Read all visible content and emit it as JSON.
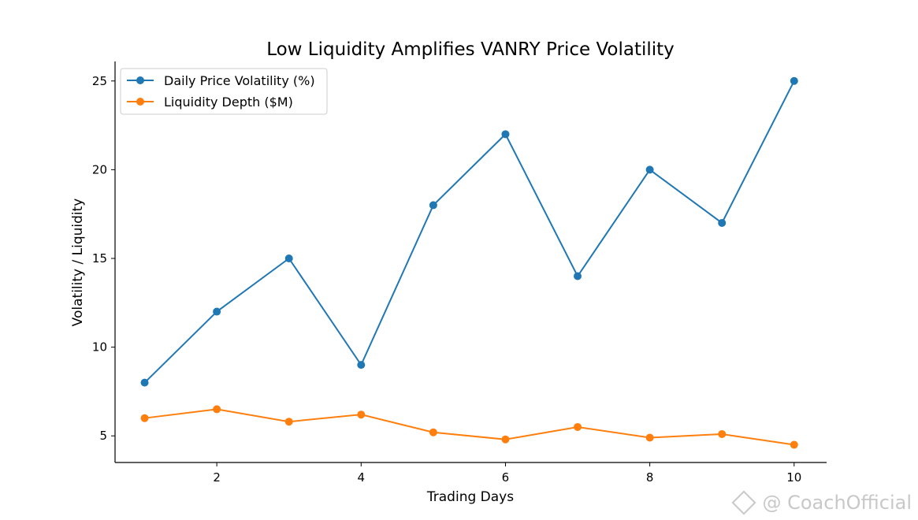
{
  "chart_data": {
    "type": "line",
    "title": "Low Liquidity Amplifies VANRY Price Volatility",
    "xlabel": "Trading Days",
    "ylabel": "Volatility / Liquidity",
    "x": [
      1,
      2,
      3,
      4,
      5,
      6,
      7,
      8,
      9,
      10
    ],
    "xticks": [
      2,
      4,
      6,
      8,
      10
    ],
    "yticks": [
      5,
      10,
      15,
      20,
      25
    ],
    "xlim": [
      0.59,
      10.45
    ],
    "ylim": [
      3.5,
      26.1
    ],
    "grid": false,
    "legend_position": "upper-left",
    "series": [
      {
        "name": "Daily Price Volatility (%)",
        "color": "#1f77b4",
        "values": [
          8,
          12,
          15,
          9,
          18,
          22,
          14,
          20,
          17,
          25
        ]
      },
      {
        "name": "Liquidity Depth ($M)",
        "color": "#ff7f0e",
        "values": [
          6.0,
          6.5,
          5.8,
          6.2,
          5.2,
          4.8,
          5.5,
          4.9,
          5.1,
          4.5
        ]
      }
    ]
  },
  "watermark": {
    "icon": "binance-diamond-icon",
    "text": "@ CoachOfficial"
  }
}
